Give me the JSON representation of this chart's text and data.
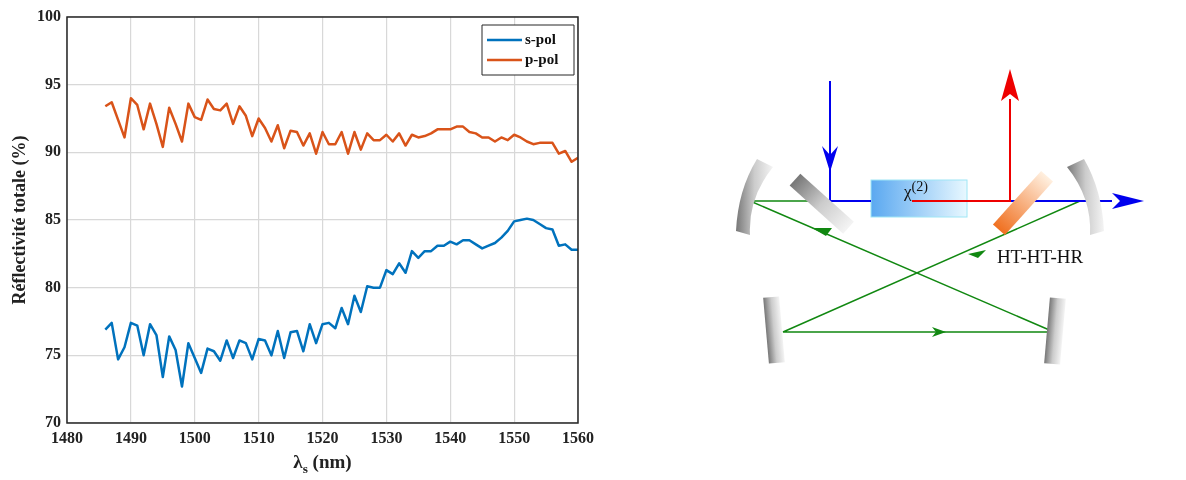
{
  "chart_data": {
    "type": "line",
    "xlabel": "λ$_{s}$ (nm)",
    "ylabel": "Réflectivité totale (%)",
    "x": [
      1486,
      1487,
      1488,
      1489,
      1490,
      1491,
      1492,
      1493,
      1494,
      1495,
      1496,
      1497,
      1498,
      1499,
      1500,
      1501,
      1502,
      1503,
      1504,
      1505,
      1506,
      1507,
      1508,
      1509,
      1510,
      1511,
      1512,
      1513,
      1514,
      1515,
      1516,
      1517,
      1518,
      1519,
      1520,
      1521,
      1522,
      1523,
      1524,
      1525,
      1526,
      1527,
      1528,
      1529,
      1530,
      1531,
      1532,
      1533,
      1534,
      1535,
      1536,
      1537,
      1538,
      1539,
      1540,
      1541,
      1542,
      1543,
      1544,
      1545,
      1546,
      1547,
      1548,
      1549,
      1550,
      1551,
      1552,
      1553,
      1554,
      1555,
      1556,
      1557,
      1558,
      1559,
      1560
    ],
    "series": [
      {
        "name": "s-pol",
        "color": "#0072bd",
        "values": [
          76.9,
          77.4,
          74.7,
          75.6,
          77.4,
          77.2,
          75.0,
          77.3,
          76.5,
          73.4,
          76.4,
          75.4,
          72.7,
          75.9,
          74.8,
          73.7,
          75.5,
          75.3,
          74.6,
          76.1,
          74.8,
          76.1,
          75.9,
          74.7,
          76.2,
          76.1,
          75.0,
          76.8,
          74.8,
          76.7,
          76.8,
          75.3,
          77.3,
          75.9,
          77.3,
          77.4,
          77.0,
          78.5,
          77.3,
          79.4,
          78.2,
          80.1,
          80.0,
          80.0,
          81.3,
          81.0,
          81.8,
          81.1,
          82.7,
          82.2,
          82.7,
          82.7,
          83.1,
          83.1,
          83.4,
          83.2,
          83.5,
          83.5,
          83.2,
          82.9,
          83.1,
          83.3,
          83.7,
          84.2,
          84.9,
          85.0,
          85.1,
          85.0,
          84.7,
          84.4,
          84.3,
          83.1,
          83.2,
          82.8,
          82.8
        ]
      },
      {
        "name": "p-pol",
        "color": "#d95319",
        "values": [
          93.4,
          93.7,
          92.4,
          91.1,
          94.0,
          93.5,
          91.7,
          93.6,
          92.1,
          90.4,
          93.3,
          92.1,
          90.8,
          93.6,
          92.6,
          92.4,
          93.9,
          93.2,
          93.1,
          93.6,
          92.1,
          93.4,
          92.7,
          91.2,
          92.5,
          91.8,
          90.8,
          92.0,
          90.3,
          91.6,
          91.5,
          90.5,
          91.4,
          89.9,
          91.5,
          90.6,
          90.6,
          91.5,
          89.9,
          91.5,
          90.2,
          91.4,
          90.9,
          90.9,
          91.3,
          90.8,
          91.4,
          90.5,
          91.3,
          91.1,
          91.2,
          91.4,
          91.7,
          91.7,
          91.7,
          91.9,
          91.9,
          91.5,
          91.4,
          91.1,
          91.1,
          90.8,
          91.1,
          90.9,
          91.3,
          91.1,
          90.8,
          90.6,
          90.7,
          90.7,
          90.7,
          89.9,
          90.1,
          89.3,
          89.6
        ]
      }
    ],
    "xlim": [
      1480,
      1560
    ],
    "xticks": [
      1480,
      1490,
      1500,
      1510,
      1520,
      1530,
      1540,
      1550,
      1560
    ],
    "ylim": [
      70,
      100
    ],
    "yticks": [
      70,
      75,
      80,
      85,
      90,
      95,
      100
    ],
    "grid": true,
    "legend": "top right",
    "annotations": [
      "HT-HT-HR",
      "χ$^{(2)}$"
    ]
  }
}
